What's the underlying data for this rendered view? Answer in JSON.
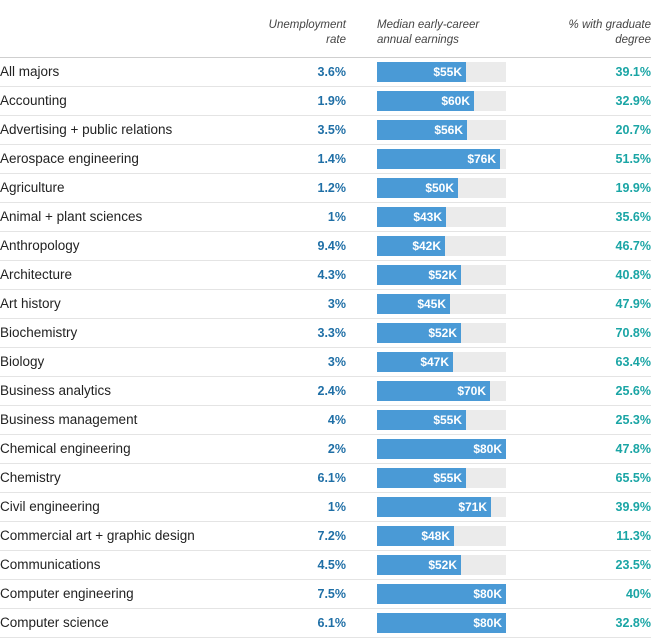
{
  "headers": {
    "unemployment_line1": "Unemployment",
    "unemployment_line2": "rate",
    "earnings_line1": "Median early-career",
    "earnings_line2": "annual earnings",
    "grad_line1": "% with graduate",
    "grad_line2": "degree"
  },
  "colors": {
    "bar": "#4a9ad6",
    "bar_bg": "#ebebeb",
    "unemployment_text": "#1f6fa6",
    "grad_text": "#1aa5a5"
  },
  "chart_data": {
    "type": "table",
    "earnings_max": 80,
    "rows": [
      {
        "major": "All majors",
        "unemployment": "3.6%",
        "earnings": 55,
        "earnings_label": "$55K",
        "grad": "39.1%"
      },
      {
        "major": "Accounting",
        "unemployment": "1.9%",
        "earnings": 60,
        "earnings_label": "$60K",
        "grad": "32.9%"
      },
      {
        "major": "Advertising + public relations",
        "unemployment": "3.5%",
        "earnings": 56,
        "earnings_label": "$56K",
        "grad": "20.7%"
      },
      {
        "major": "Aerospace engineering",
        "unemployment": "1.4%",
        "earnings": 76,
        "earnings_label": "$76K",
        "grad": "51.5%"
      },
      {
        "major": "Agriculture",
        "unemployment": "1.2%",
        "earnings": 50,
        "earnings_label": "$50K",
        "grad": "19.9%"
      },
      {
        "major": "Animal + plant sciences",
        "unemployment": "1%",
        "earnings": 43,
        "earnings_label": "$43K",
        "grad": "35.6%"
      },
      {
        "major": "Anthropology",
        "unemployment": "9.4%",
        "earnings": 42,
        "earnings_label": "$42K",
        "grad": "46.7%"
      },
      {
        "major": "Architecture",
        "unemployment": "4.3%",
        "earnings": 52,
        "earnings_label": "$52K",
        "grad": "40.8%"
      },
      {
        "major": "Art history",
        "unemployment": "3%",
        "earnings": 45,
        "earnings_label": "$45K",
        "grad": "47.9%"
      },
      {
        "major": "Biochemistry",
        "unemployment": "3.3%",
        "earnings": 52,
        "earnings_label": "$52K",
        "grad": "70.8%"
      },
      {
        "major": "Biology",
        "unemployment": "3%",
        "earnings": 47,
        "earnings_label": "$47K",
        "grad": "63.4%"
      },
      {
        "major": "Business analytics",
        "unemployment": "2.4%",
        "earnings": 70,
        "earnings_label": "$70K",
        "grad": "25.6%"
      },
      {
        "major": "Business management",
        "unemployment": "4%",
        "earnings": 55,
        "earnings_label": "$55K",
        "grad": "25.3%"
      },
      {
        "major": "Chemical engineering",
        "unemployment": "2%",
        "earnings": 80,
        "earnings_label": "$80K",
        "grad": "47.8%"
      },
      {
        "major": "Chemistry",
        "unemployment": "6.1%",
        "earnings": 55,
        "earnings_label": "$55K",
        "grad": "65.5%"
      },
      {
        "major": "Civil engineering",
        "unemployment": "1%",
        "earnings": 71,
        "earnings_label": "$71K",
        "grad": "39.9%"
      },
      {
        "major": "Commercial art + graphic design",
        "unemployment": "7.2%",
        "earnings": 48,
        "earnings_label": "$48K",
        "grad": "11.3%"
      },
      {
        "major": "Communications",
        "unemployment": "4.5%",
        "earnings": 52,
        "earnings_label": "$52K",
        "grad": "23.5%"
      },
      {
        "major": "Computer engineering",
        "unemployment": "7.5%",
        "earnings": 80,
        "earnings_label": "$80K",
        "grad": "40%"
      },
      {
        "major": "Computer science",
        "unemployment": "6.1%",
        "earnings": 80,
        "earnings_label": "$80K",
        "grad": "32.8%"
      }
    ]
  }
}
